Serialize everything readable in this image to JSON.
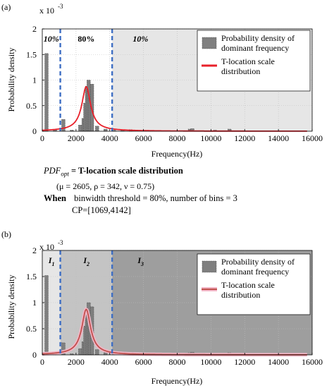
{
  "chart_data": [
    {
      "panel_label": "(a)",
      "type": "bar+line",
      "ylabel": "Probability density",
      "xlabel": "Frequency(Hz)",
      "y_exponent": "x 10",
      "y_exponent_power": "-3",
      "xlim": [
        0,
        16000
      ],
      "ylim": [
        0,
        0.002
      ],
      "x_ticks": [
        "0",
        "2000",
        "4000",
        "6000",
        "8000",
        "10000",
        "12000",
        "14000",
        "16000"
      ],
      "y_ticks": [
        "0",
        "0.5",
        "1",
        "1.5",
        "2"
      ],
      "regions": [
        "10%",
        "80%",
        "10%"
      ],
      "region_boundaries": [
        1069,
        4142
      ],
      "legend": {
        "bars": "Probability density of dominant frequency",
        "line": "T-location scale distribution",
        "position": "top-right"
      },
      "bars_x": [
        250,
        750,
        1250,
        1750,
        2250,
        2450,
        2550,
        2650,
        2750,
        2850,
        2950,
        3250,
        3750,
        4250,
        4750,
        5250,
        8750,
        8900,
        10250,
        11100
      ],
      "bars_y": [
        0.00152,
        3e-05,
        0.00023,
        2e-05,
        0.00012,
        0.00025,
        0.00055,
        0.00088,
        0.001,
        0.00065,
        0.00092,
        0.0001,
        4e-05,
        2e-05,
        2e-05,
        3e-05,
        4e-05,
        5e-05,
        2e-05,
        4e-05
      ],
      "line_params": {
        "mu": 2605,
        "sigma": 342,
        "nu": 0.75
      },
      "grid": true
    },
    {
      "panel_label": "(b)",
      "type": "bar+line",
      "ylabel": "Probability density",
      "xlabel": "Frequency(Hz)",
      "y_exponent": "x 10",
      "y_exponent_power": "-3",
      "xlim": [
        0,
        16000
      ],
      "ylim": [
        0,
        0.002
      ],
      "x_ticks": [
        "0",
        "2000",
        "4000",
        "6000",
        "8000",
        "10000",
        "12000",
        "14000",
        "16000"
      ],
      "y_ticks": [
        "0",
        "0.5",
        "1",
        "1.5",
        "2"
      ],
      "regions": [
        {
          "letter": "I",
          "sub": "1"
        },
        {
          "letter": "I",
          "sub": "2"
        },
        {
          "letter": "I",
          "sub": "3"
        }
      ],
      "region_boundaries": [
        1069,
        4142
      ],
      "legend": {
        "bars": "Probability density of dominant frequency",
        "line": "T-location scale distribution",
        "position": "top-right"
      },
      "bars_x": [
        250,
        750,
        1250,
        1750,
        2250,
        2450,
        2550,
        2650,
        2750,
        2850,
        2950,
        3250,
        3750,
        4250,
        4750,
        5250,
        8750,
        8900,
        10250,
        11100
      ],
      "bars_y": [
        0.00152,
        3e-05,
        0.00023,
        2e-05,
        0.00012,
        0.00025,
        0.00055,
        0.00088,
        0.001,
        0.00065,
        0.00092,
        0.0001,
        4e-05,
        2e-05,
        2e-05,
        3e-05,
        4e-05,
        5e-05,
        2e-05,
        4e-05
      ],
      "line_params": {
        "mu": 2605,
        "sigma": 342,
        "nu": 0.75
      },
      "grid": true
    }
  ],
  "formula": {
    "pdf_label": "PDF",
    "pdf_sub": "opt",
    "pdf_equals": "= T-location scale distribution",
    "params": "(μ = 2605,  ρ = 342, ν = 0.75)",
    "when_label": "When",
    "when_text": "binwidth threshold = 80%, number of bins = 3",
    "cp_text": "CP=[1069,4142]"
  },
  "colors": {
    "bar_fill": "#7f7f7f",
    "line_a": "#e8202a",
    "line_b": "#c0504d",
    "line_b_halo": "#f2b6c6",
    "boundary": "#3f6fc4",
    "region_light": "#e6e6e6",
    "region_mid": "#c4c4c4",
    "region_dark": "#9e9e9e"
  }
}
